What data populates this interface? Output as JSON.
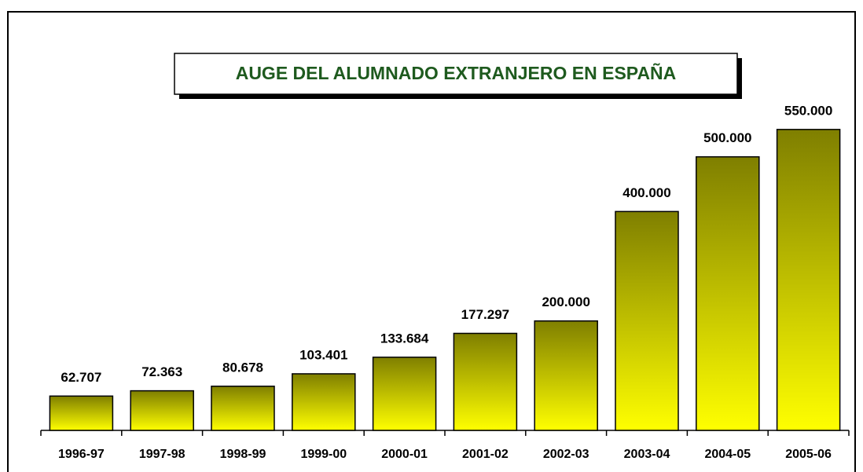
{
  "chart_data": {
    "type": "bar",
    "title": "AUGE DEL ALUMNADO EXTRANJERO EN ESPAÑA",
    "categories": [
      "1996-97",
      "1997-98",
      "1998-99",
      "1999-00",
      "2000-01",
      "2001-02",
      "2002-03",
      "2003-04",
      "2004-05",
      "2005-06"
    ],
    "values": [
      62707,
      72363,
      80678,
      103401,
      133684,
      177297,
      200000,
      400000,
      500000,
      550000
    ],
    "value_labels": [
      "62.707",
      "72.363",
      "80.678",
      "103.401",
      "133.684",
      "177.297",
      "200.000",
      "400.000",
      "500.000",
      "550.000"
    ],
    "gradient": [
      "#7f7f00",
      "#ffff00"
    ],
    "ylim": [
      0,
      600000
    ]
  }
}
